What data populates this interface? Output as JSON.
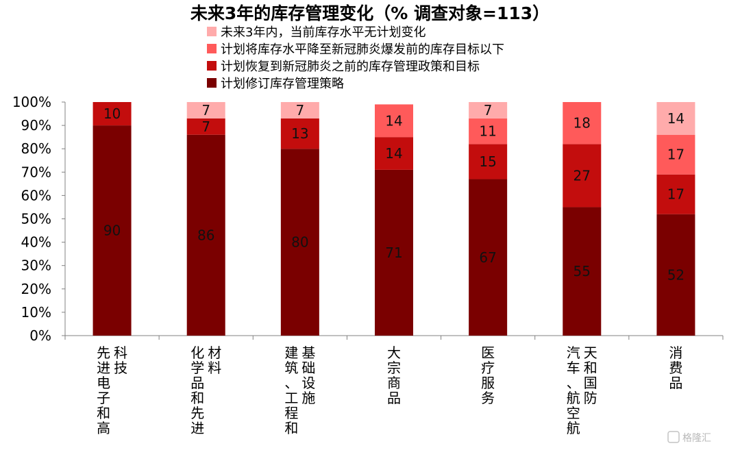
{
  "chart_data": {
    "type": "bar",
    "stacked": true,
    "title": "未来3年的库存管理变化（% 调查对象=113）",
    "categories": [
      [
        "先进电子和高",
        "科技"
      ],
      [
        "化学品和先进",
        "材料"
      ],
      [
        "建筑、工程和",
        "基础设施"
      ],
      [
        "大宗商品"
      ],
      [
        "医疗服务"
      ],
      [
        "汽车、航空航",
        "天和国防"
      ],
      [
        "消费品"
      ]
    ],
    "series": [
      {
        "name": "计划修订库存管理策略",
        "color": "#7a0000",
        "values": [
          90,
          86,
          80,
          71,
          67,
          55,
          52
        ]
      },
      {
        "name": "计划恢复到新冠肺炎之前的库存管理政策和目标",
        "color": "#c30d0d",
        "values": [
          10,
          7,
          13,
          14,
          15,
          27,
          17
        ]
      },
      {
        "name": "计划将库存水平降至新冠肺炎爆发前的库存目标以下",
        "color": "#ff5a5a",
        "values": [
          0,
          0,
          0,
          14,
          11,
          18,
          17
        ]
      },
      {
        "name": "未来3年内，当前库存水平无计划变化",
        "color": "#ffabab",
        "values": [
          0,
          7,
          7,
          0,
          7,
          0,
          14
        ]
      }
    ],
    "legend_order": [
      3,
      2,
      1,
      0
    ],
    "ylim": [
      0,
      100
    ],
    "yticks": [
      "0%",
      "10%",
      "20%",
      "30%",
      "40%",
      "50%",
      "60%",
      "70%",
      "80%",
      "90%",
      "100%"
    ],
    "legend_position": "top",
    "grid": false
  },
  "watermark": "格隆汇"
}
